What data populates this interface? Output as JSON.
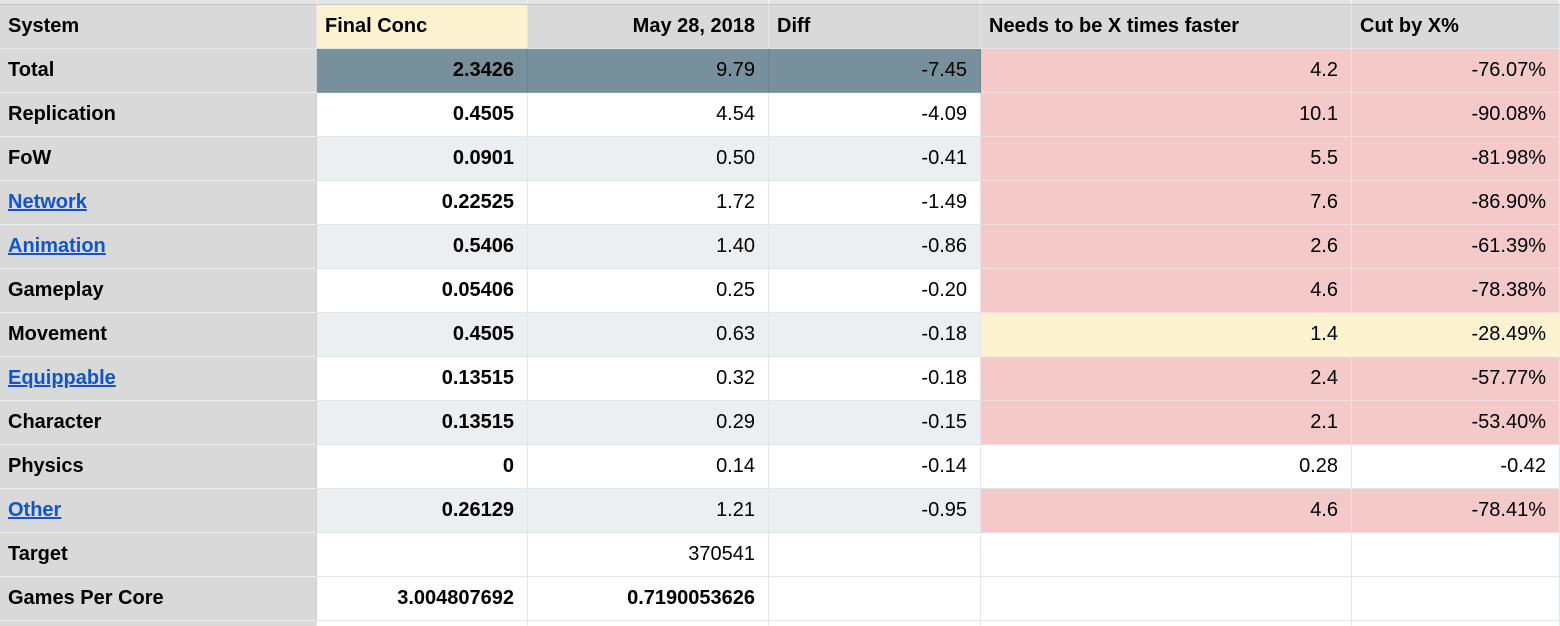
{
  "colors": {
    "header_bg": "#d9d9d9",
    "accent_yellow": "#fdf2cf",
    "total_slate": "#78909c",
    "band_blue": "#eceff1",
    "status_red": "#f3c9c9",
    "status_yellow": "#fdf2cf",
    "link_blue": "#1155cc",
    "row_gray": "#d9d9d9"
  },
  "columns": [
    {
      "id": "system",
      "label": "System"
    },
    {
      "id": "final_conc",
      "label": "Final Conc"
    },
    {
      "id": "may_28",
      "label": "May 28, 2018"
    },
    {
      "id": "diff",
      "label": "Diff"
    },
    {
      "id": "x_faster",
      "label": "Needs to be X times faster"
    },
    {
      "id": "cut_by",
      "label": "Cut by X%"
    }
  ],
  "rows": [
    {
      "system": "Total",
      "link": false,
      "final_conc": "2.3426",
      "may_28": "9.79",
      "diff": "-7.45",
      "x_faster": "4.2",
      "cut_by": "-76.07%",
      "shade": "total",
      "status": "red",
      "may_bold": false
    },
    {
      "system": "Replication",
      "link": false,
      "final_conc": "0.4505",
      "may_28": "4.54",
      "diff": "-4.09",
      "x_faster": "10.1",
      "cut_by": "-90.08%",
      "shade": "white",
      "status": "red",
      "may_bold": false
    },
    {
      "system": "FoW",
      "link": false,
      "final_conc": "0.0901",
      "may_28": "0.50",
      "diff": "-0.41",
      "x_faster": "5.5",
      "cut_by": "-81.98%",
      "shade": "band",
      "status": "red",
      "may_bold": false
    },
    {
      "system": "Network",
      "link": true,
      "final_conc": "0.22525",
      "may_28": "1.72",
      "diff": "-1.49",
      "x_faster": "7.6",
      "cut_by": "-86.90%",
      "shade": "white",
      "status": "red",
      "may_bold": false
    },
    {
      "system": "Animation",
      "link": true,
      "final_conc": "0.5406",
      "may_28": "1.40",
      "diff": "-0.86",
      "x_faster": "2.6",
      "cut_by": "-61.39%",
      "shade": "band",
      "status": "red",
      "may_bold": false
    },
    {
      "system": "Gameplay",
      "link": false,
      "final_conc": "0.05406",
      "may_28": "0.25",
      "diff": "-0.20",
      "x_faster": "4.6",
      "cut_by": "-78.38%",
      "shade": "white",
      "status": "red",
      "may_bold": false
    },
    {
      "system": "Movement",
      "link": false,
      "final_conc": "0.4505",
      "may_28": "0.63",
      "diff": "-0.18",
      "x_faster": "1.4",
      "cut_by": "-28.49%",
      "shade": "band",
      "status": "yellow",
      "may_bold": false
    },
    {
      "system": "Equippable",
      "link": true,
      "final_conc": "0.13515",
      "may_28": "0.32",
      "diff": "-0.18",
      "x_faster": "2.4",
      "cut_by": "-57.77%",
      "shade": "white",
      "status": "red",
      "may_bold": false
    },
    {
      "system": "Character",
      "link": false,
      "final_conc": "0.13515",
      "may_28": "0.29",
      "diff": "-0.15",
      "x_faster": "2.1",
      "cut_by": "-53.40%",
      "shade": "band",
      "status": "red",
      "may_bold": false
    },
    {
      "system": "Physics",
      "link": false,
      "final_conc": "0",
      "may_28": "0.14",
      "diff": "-0.14",
      "x_faster": "0.28",
      "cut_by": "-0.42",
      "shade": "white",
      "status": "none",
      "may_bold": false
    },
    {
      "system": "Other",
      "link": true,
      "final_conc": "0.26129",
      "may_28": "1.21",
      "diff": "-0.95",
      "x_faster": "4.6",
      "cut_by": "-78.41%",
      "shade": "band",
      "status": "red",
      "may_bold": false
    },
    {
      "system": "Target",
      "link": false,
      "final_conc": "",
      "may_28": "370541",
      "diff": "",
      "x_faster": "",
      "cut_by": "",
      "shade": "white",
      "status": "none",
      "may_bold": false
    },
    {
      "system": "Games Per Core",
      "link": false,
      "final_conc": "3.004807692",
      "may_28": "0.7190053626",
      "diff": "",
      "x_faster": "",
      "cut_by": "",
      "shade": "white",
      "status": "none",
      "may_bold": true
    }
  ]
}
